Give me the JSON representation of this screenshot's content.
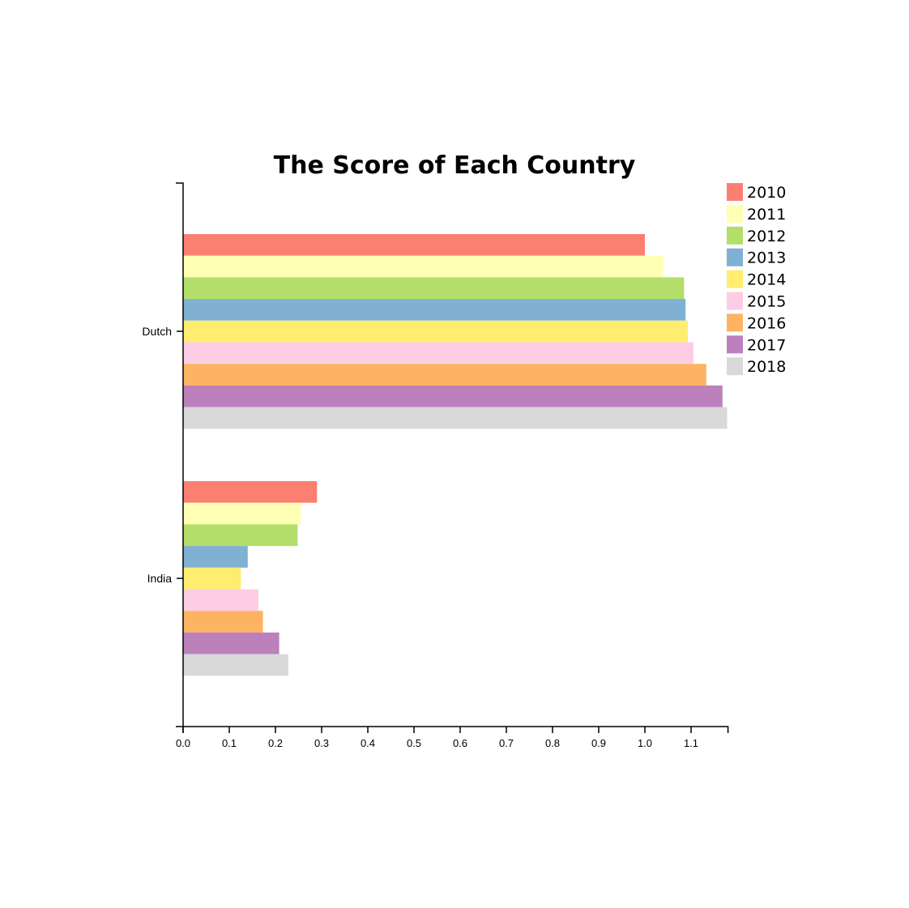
{
  "chart_data": {
    "type": "bar",
    "orientation": "horizontal",
    "title": "The Score of Each Country",
    "xlabel": "",
    "ylabel": "",
    "categories": [
      "Dutch",
      "India"
    ],
    "xlim": [
      0,
      1.18
    ],
    "xticks": [
      "0.0",
      "0.1",
      "0.2",
      "0.3",
      "0.4",
      "0.5",
      "0.6",
      "0.7",
      "0.8",
      "0.9",
      "1.0",
      "1.1"
    ],
    "grid": false,
    "legend_position": "top-right",
    "series": [
      {
        "name": "2010",
        "color": "#fb8072",
        "values": [
          1.0,
          0.29
        ]
      },
      {
        "name": "2011",
        "color": "#ffffb3",
        "values": [
          1.04,
          0.255
        ]
      },
      {
        "name": "2012",
        "color": "#b3de69",
        "values": [
          1.085,
          0.248
        ]
      },
      {
        "name": "2013",
        "color": "#80b1d3",
        "values": [
          1.088,
          0.14
        ]
      },
      {
        "name": "2014",
        "color": "#ffed6f",
        "values": [
          1.093,
          0.125
        ]
      },
      {
        "name": "2015",
        "color": "#fccde5",
        "values": [
          1.105,
          0.163
        ]
      },
      {
        "name": "2016",
        "color": "#fdb462",
        "values": [
          1.133,
          0.173
        ]
      },
      {
        "name": "2017",
        "color": "#bc80bd",
        "values": [
          1.168,
          0.208
        ]
      },
      {
        "name": "2018",
        "color": "#d9d9d9",
        "values": [
          1.178,
          0.228
        ]
      }
    ]
  }
}
